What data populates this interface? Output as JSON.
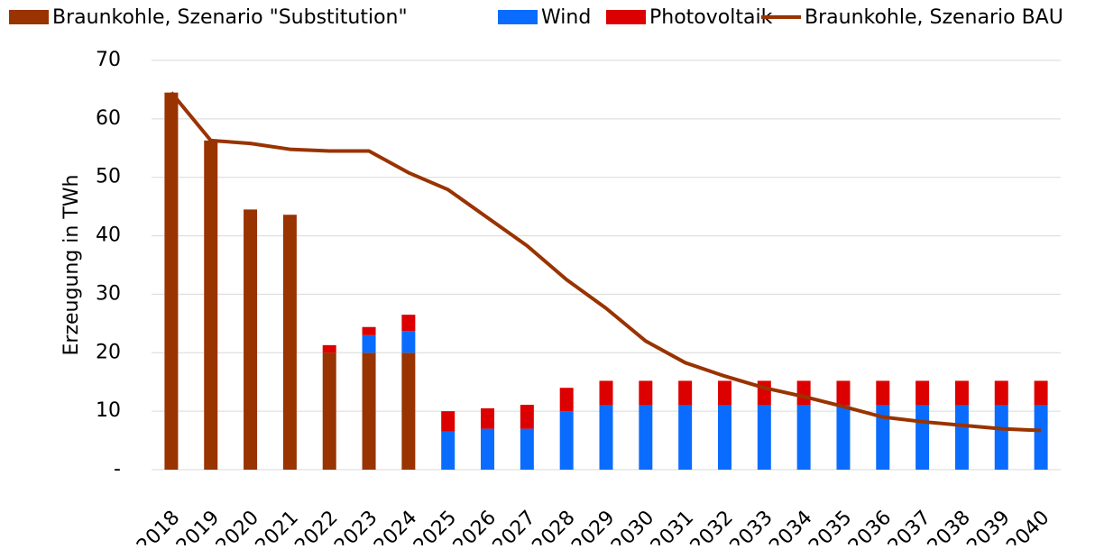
{
  "chart_data": {
    "type": "stacked-bar-line",
    "y_axis_label": "Erzeugung in TWh",
    "categories": [
      "2018",
      "2019",
      "2020",
      "2021",
      "2022",
      "2023",
      "2024",
      "2025",
      "2026",
      "2027",
      "2028",
      "2029",
      "2030",
      "2031",
      "2032",
      "2033",
      "2034",
      "2035",
      "2036",
      "2037",
      "2038",
      "2039",
      "2040"
    ],
    "series": [
      {
        "name": "Braunkohle, Szenario \"Substitution\"",
        "kind": "bar",
        "color": "#993300",
        "values": [
          64.5,
          56.3,
          44.5,
          43.6,
          20,
          20,
          20,
          0,
          0,
          0,
          0,
          0,
          0,
          0,
          0,
          0,
          0,
          0,
          0,
          0,
          0,
          0,
          0
        ]
      },
      {
        "name": "Wind",
        "kind": "bar",
        "color": "#0a6cff",
        "values": [
          0,
          0,
          0,
          0,
          0,
          3,
          3.7,
          6.5,
          7,
          7,
          10,
          11,
          11,
          11,
          11,
          11,
          11,
          11,
          11,
          11,
          11,
          11,
          11
        ]
      },
      {
        "name": "Photovoltaik",
        "kind": "bar",
        "color": "#dd0000",
        "values": [
          0,
          0,
          0,
          0,
          1.3,
          1.4,
          2.8,
          3.5,
          3.5,
          4.1,
          4,
          4.2,
          4.2,
          4.2,
          4.2,
          4.2,
          4.2,
          4.2,
          4.2,
          4.2,
          4.2,
          4.2,
          4.2
        ]
      },
      {
        "name": "Braunkohle, Szenario BAU",
        "kind": "line",
        "color": "#993300",
        "values": [
          64.5,
          56.3,
          55.8,
          54.8,
          54.5,
          54.5,
          50.8,
          47.9,
          43.1,
          38.3,
          32.5,
          27.6,
          22,
          18.3,
          16,
          14,
          12.5,
          10.8,
          9,
          8.2,
          7.6,
          7,
          6.7
        ]
      }
    ],
    "ylim": [
      0,
      70
    ],
    "yticks": [
      {
        "value": 0,
        "label": "-"
      },
      10,
      20,
      30,
      40,
      50,
      60,
      70
    ],
    "grid": true,
    "legend": "top"
  }
}
